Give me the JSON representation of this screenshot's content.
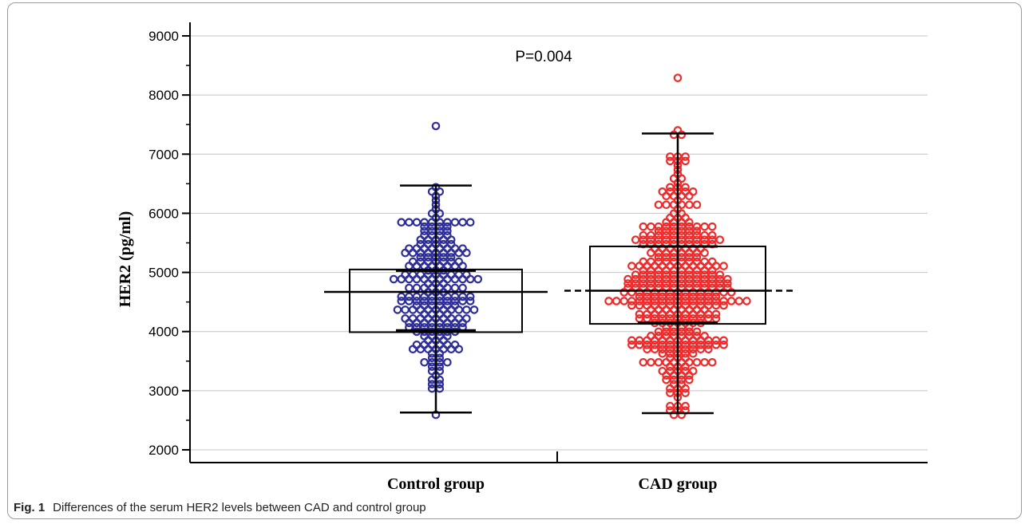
{
  "chart_data": {
    "type": "scatter",
    "subtype": "box-dot-plot",
    "title": "",
    "xlabel": "",
    "ylabel": "HER2 (pg/ml)",
    "ylim": [
      2000,
      9000
    ],
    "yticks": [
      2000,
      3000,
      4000,
      5000,
      6000,
      7000,
      8000,
      9000
    ],
    "grid": true,
    "annotation": "P=0.004",
    "categories": [
      "Control group",
      "CAD group"
    ],
    "groups": [
      {
        "name": "Control group",
        "color": "#2e2e9a",
        "median": 4670,
        "q1": 3990,
        "q3": 5050,
        "whisker_low": 2630,
        "whisker_high": 6470,
        "mean": 4020,
        "mean_sd_low": 4020,
        "mean_sd_high": 5030,
        "n_points": 230,
        "min": 2620,
        "max": 7440
      },
      {
        "name": "CAD group",
        "color": "#ee2a2a",
        "median": 4690,
        "q1": 4130,
        "q3": 5440,
        "whisker_low": 2620,
        "whisker_high": 7350,
        "mean": 4690,
        "mean_sd_low": 4150,
        "mean_sd_high": 5440,
        "n_points": 400,
        "min": 2600,
        "max": 8320
      }
    ]
  },
  "caption": {
    "label": "Fig. 1",
    "text": "Differences of the serum HER2 levels between CAD and control group"
  }
}
